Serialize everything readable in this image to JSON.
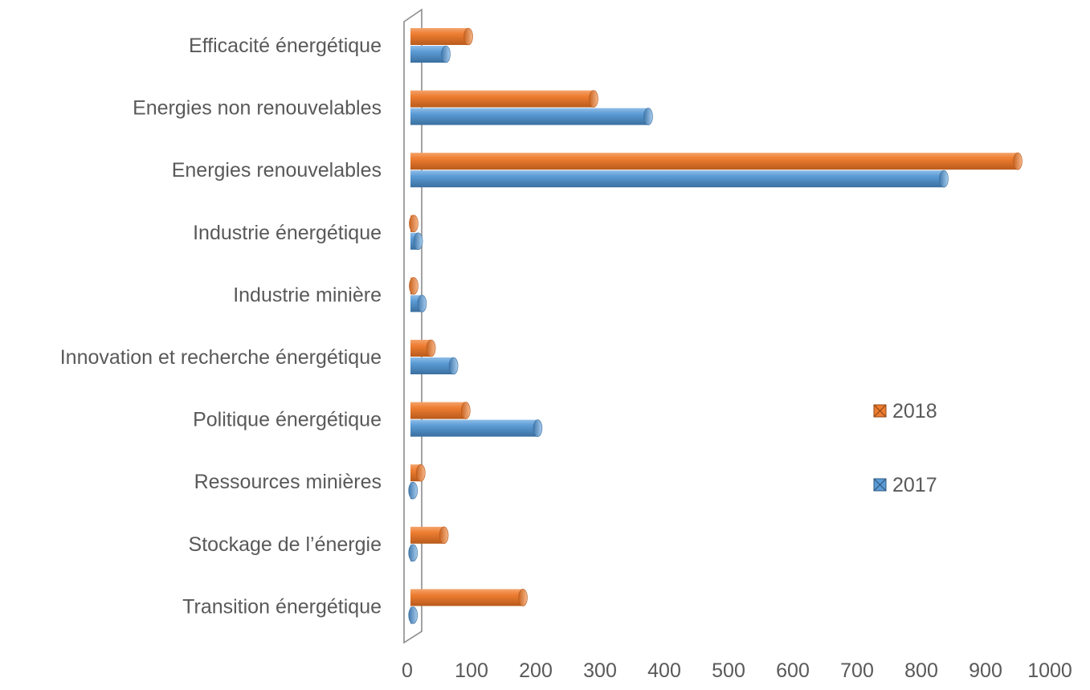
{
  "chart_data": {
    "type": "bar",
    "orientation": "horizontal",
    "style": "3d-cylinder",
    "categories": [
      "Efficacité énergétique",
      "Energies non renouvelables",
      "Energies renouvelables",
      "Industrie énergétique",
      "Industrie minière",
      "Innovation et recherche énergétique",
      "Politique énergétique",
      "Ressources minières",
      "Stockage de l’énergie",
      "Transition énergétique"
    ],
    "series": [
      {
        "name": "2018",
        "color": "#ED7D31",
        "values": [
          90,
          285,
          945,
          5,
          5,
          32,
          86,
          16,
          52,
          175
        ]
      },
      {
        "name": "2017",
        "color": "#5B9BD5",
        "values": [
          55,
          370,
          830,
          12,
          18,
          67,
          198,
          4,
          4,
          4
        ]
      }
    ],
    "xlim": [
      0,
      1000
    ],
    "xticks": [
      0,
      100,
      200,
      300,
      400,
      500,
      600,
      700,
      800,
      900,
      1000
    ],
    "title": "",
    "xlabel": "",
    "ylabel": "",
    "grid": false,
    "legend_position": "right"
  }
}
